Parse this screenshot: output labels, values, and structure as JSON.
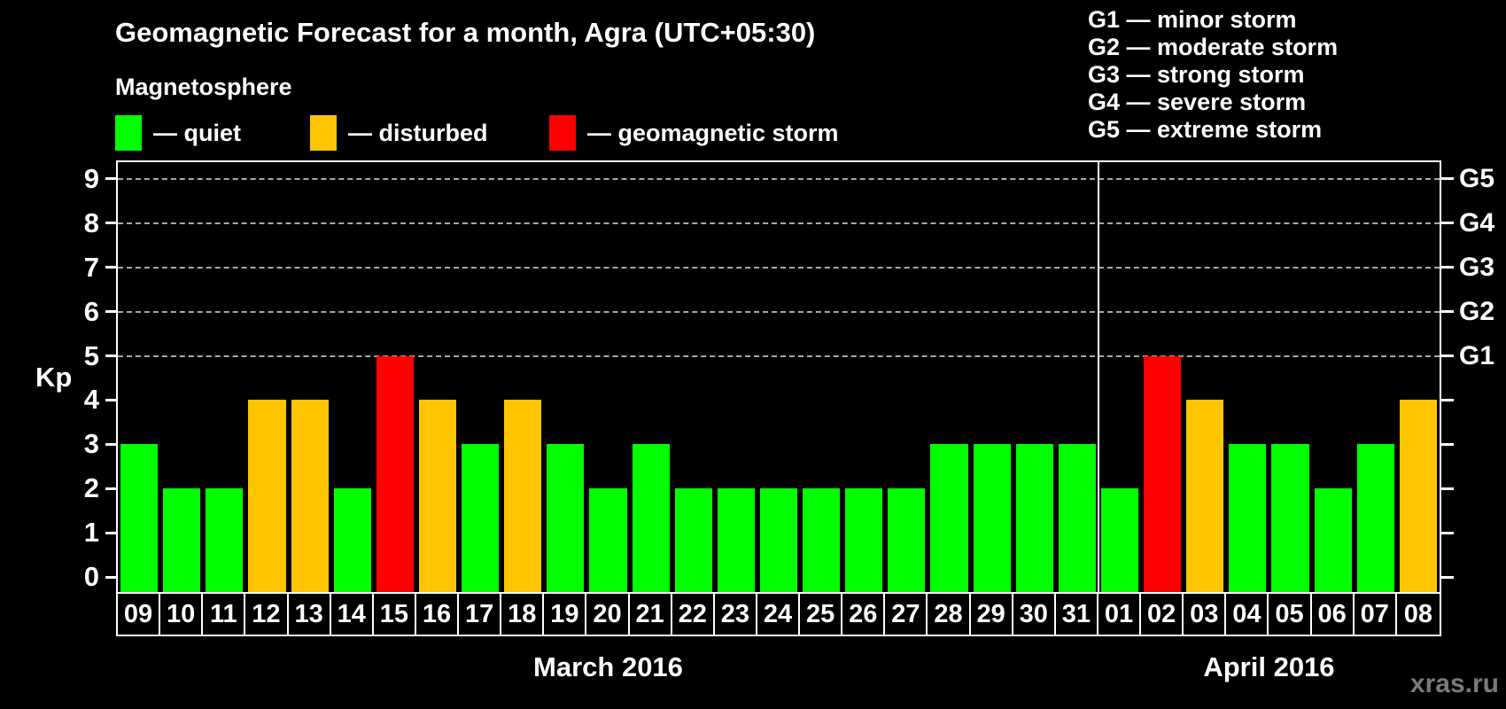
{
  "title": "Geomagnetic Forecast for a month, Agra (UTC+05:30)",
  "subtitle": "Magnetosphere",
  "legend": {
    "items": [
      {
        "state": "quiet",
        "color": "#00ff00",
        "label": "— quiet"
      },
      {
        "state": "disturbed",
        "color": "#ffc400",
        "label": "— disturbed"
      },
      {
        "state": "storm",
        "color": "#ff0000",
        "label": "— geomagnetic storm"
      }
    ]
  },
  "g_scale_legend": [
    "G1 — minor storm",
    "G2 — moderate storm",
    "G3 — strong storm",
    "G4 — severe storm",
    "G5 — extreme storm"
  ],
  "watermark": "xras.ru",
  "chart_data": {
    "type": "bar",
    "title": "Geomagnetic Forecast for a month, Agra (UTC+05:30)",
    "ylabel": "Kp",
    "ylim": [
      -0.34,
      9.4
    ],
    "y_ticks": [
      0,
      1,
      2,
      3,
      4,
      5,
      6,
      7,
      8,
      9
    ],
    "grid_levels": [
      5,
      6,
      7,
      8,
      9
    ],
    "grid": "dashed horizontal lines at Kp 5-9 only",
    "legend_position": "top",
    "right_axis_labels": [
      {
        "kp": 5,
        "text": "G1"
      },
      {
        "kp": 6,
        "text": "G2"
      },
      {
        "kp": 7,
        "text": "G3"
      },
      {
        "kp": 8,
        "text": "G4"
      },
      {
        "kp": 9,
        "text": "G5"
      }
    ],
    "state_colors": {
      "quiet": "#00ff00",
      "disturbed": "#ffc400",
      "storm": "#ff0000"
    },
    "months": [
      {
        "label": "March 2016",
        "days": [
          {
            "day": "09",
            "kp": 3,
            "state": "quiet"
          },
          {
            "day": "10",
            "kp": 2,
            "state": "quiet"
          },
          {
            "day": "11",
            "kp": 2,
            "state": "quiet"
          },
          {
            "day": "12",
            "kp": 4,
            "state": "disturbed"
          },
          {
            "day": "13",
            "kp": 4,
            "state": "disturbed"
          },
          {
            "day": "14",
            "kp": 2,
            "state": "quiet"
          },
          {
            "day": "15",
            "kp": 5,
            "state": "storm"
          },
          {
            "day": "16",
            "kp": 4,
            "state": "disturbed"
          },
          {
            "day": "17",
            "kp": 3,
            "state": "quiet"
          },
          {
            "day": "18",
            "kp": 4,
            "state": "disturbed"
          },
          {
            "day": "19",
            "kp": 3,
            "state": "quiet"
          },
          {
            "day": "20",
            "kp": 2,
            "state": "quiet"
          },
          {
            "day": "21",
            "kp": 3,
            "state": "quiet"
          },
          {
            "day": "22",
            "kp": 2,
            "state": "quiet"
          },
          {
            "day": "23",
            "kp": 2,
            "state": "quiet"
          },
          {
            "day": "24",
            "kp": 2,
            "state": "quiet"
          },
          {
            "day": "25",
            "kp": 2,
            "state": "quiet"
          },
          {
            "day": "26",
            "kp": 2,
            "state": "quiet"
          },
          {
            "day": "27",
            "kp": 2,
            "state": "quiet"
          },
          {
            "day": "28",
            "kp": 3,
            "state": "quiet"
          },
          {
            "day": "29",
            "kp": 3,
            "state": "quiet"
          },
          {
            "day": "30",
            "kp": 3,
            "state": "quiet"
          },
          {
            "day": "31",
            "kp": 3,
            "state": "quiet"
          }
        ]
      },
      {
        "label": "April 2016",
        "days": [
          {
            "day": "01",
            "kp": 2,
            "state": "quiet"
          },
          {
            "day": "02",
            "kp": 5,
            "state": "storm"
          },
          {
            "day": "03",
            "kp": 4,
            "state": "disturbed"
          },
          {
            "day": "04",
            "kp": 3,
            "state": "quiet"
          },
          {
            "day": "05",
            "kp": 3,
            "state": "quiet"
          },
          {
            "day": "06",
            "kp": 2,
            "state": "quiet"
          },
          {
            "day": "07",
            "kp": 3,
            "state": "quiet"
          },
          {
            "day": "08",
            "kp": 4,
            "state": "disturbed"
          }
        ]
      }
    ]
  }
}
